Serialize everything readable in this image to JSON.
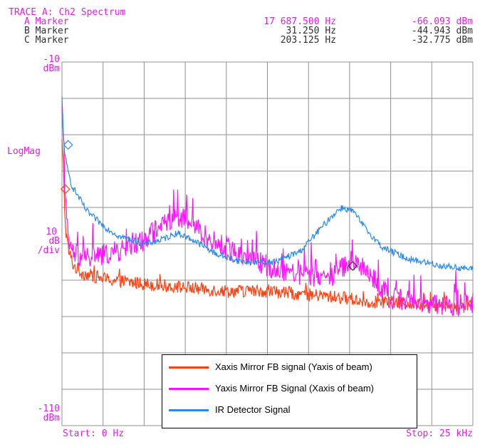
{
  "header": {
    "trace_title": "TRACE A: Ch2 Spectrum",
    "markers": [
      {
        "label": "A Marker",
        "freq": "17 687.500 Hz",
        "amp": "-66.093 dBm",
        "color": "#e020e0"
      },
      {
        "label": "B Marker",
        "freq": "31.250 Hz",
        "amp": "-44.943 dBm",
        "color": "#303030"
      },
      {
        "label": "C Marker",
        "freq": "203.125 Hz",
        "amp": "-32.775 dBm",
        "color": "#303030"
      }
    ]
  },
  "left_labels": {
    "top_value": "-10",
    "top_unit": "dBm",
    "mode": "LogMag",
    "scale_value": "10",
    "scale_unit": "dB",
    "scale_per": "/div",
    "bottom_value": "-110",
    "bottom_unit": "dBm"
  },
  "footer": {
    "start": "Start: 0 Hz",
    "stop": "Stop: 25 kHz"
  },
  "colors": {
    "grid": "#909090",
    "text_accent": "#e020e0",
    "series_x": "#ff4010",
    "series_y": "#ff10ff",
    "series_ir": "#2a8ae8"
  },
  "chart_data": {
    "type": "line",
    "xlabel": "",
    "ylabel": "",
    "xlim": [
      0,
      25000
    ],
    "ylim": [
      -110,
      -10
    ],
    "x_unit": "Hz",
    "y_unit": "dBm",
    "grid": true,
    "grid_divisions": {
      "x": 10,
      "y": 10
    },
    "legend_position": "bottom-center",
    "series": [
      {
        "name": "Xaxis Mirror FB signal (Yaxis of beam)",
        "color": "#ff4010",
        "x": [
          0,
          100,
          200,
          400,
          700,
          1200,
          2000,
          3000,
          5000,
          7500,
          10000,
          12500,
          15000,
          17500,
          18500,
          20000,
          22500,
          25000
        ],
        "y": [
          -32,
          -40,
          -55,
          -62,
          -66,
          -68,
          -69,
          -70,
          -71,
          -72,
          -73,
          -73,
          -74,
          -75,
          -76,
          -76,
          -77,
          -77
        ],
        "noise": 1.8
      },
      {
        "name": "Yaxis Mirror FB Signal (Xaxis of beam)",
        "color": "#ff10ff",
        "x": [
          0,
          100,
          200,
          400,
          800,
          1500,
          2500,
          3500,
          5000,
          6000,
          7000,
          8000,
          9000,
          11000,
          13000,
          15000,
          16500,
          17500,
          18200,
          19000,
          20000,
          22500,
          25000
        ],
        "y": [
          -25,
          -35,
          -48,
          -60,
          -63,
          -64,
          -63,
          -62,
          -59,
          -55,
          -52,
          -55,
          -59,
          -63,
          -67,
          -69,
          -69,
          -65,
          -66,
          -70,
          -75,
          -77,
          -77
        ],
        "noise": 3.0
      },
      {
        "name": "IR Detector Signal",
        "color": "#2a8ae8",
        "x": [
          0,
          100,
          300,
          600,
          1000,
          1500,
          2500,
          3500,
          5000,
          6000,
          7000,
          8000,
          9500,
          11000,
          13000,
          14500,
          15500,
          16500,
          17000,
          17700,
          18500,
          19500,
          21000,
          23000,
          25000
        ],
        "y": [
          -20,
          -32,
          -39,
          -44,
          -47,
          -51,
          -55,
          -58,
          -60,
          -59,
          -57,
          -59,
          -63,
          -65,
          -65,
          -62,
          -57,
          -52,
          -50,
          -51,
          -56,
          -61,
          -64,
          -66,
          -67
        ],
        "noise": 0.9
      }
    ],
    "markers": [
      {
        "label": "A",
        "x": 17687.5,
        "y": -66.093,
        "shape": "diamond",
        "color": "#303030"
      },
      {
        "label": "B",
        "x": 31.25,
        "y": -44.943,
        "shape": "diamond",
        "color": "#ff4010"
      },
      {
        "label": "C",
        "x": 203.125,
        "y": -32.775,
        "shape": "diamond",
        "color": "#2a8ae8"
      }
    ]
  }
}
